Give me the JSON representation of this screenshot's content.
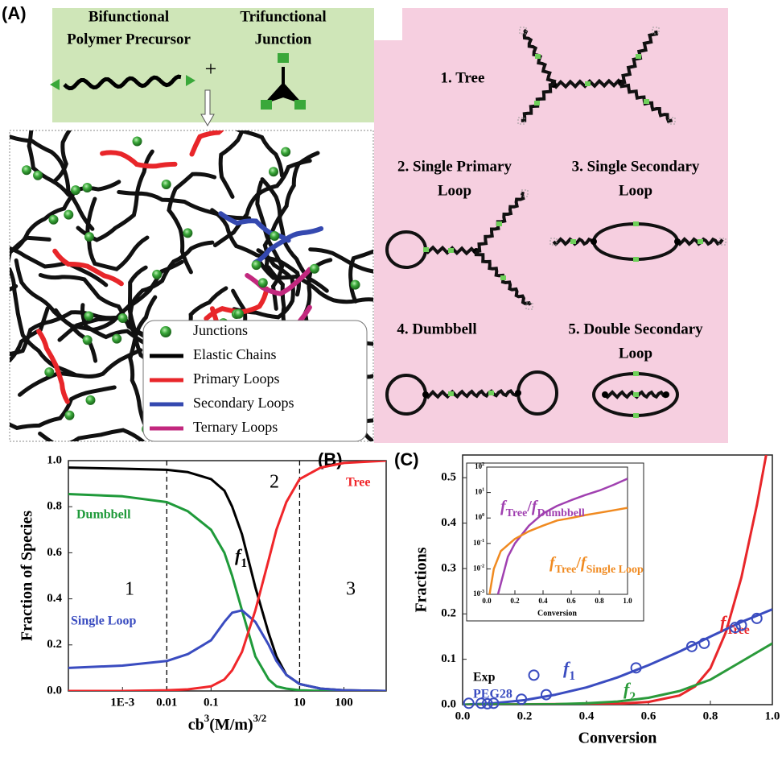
{
  "figure_a": {
    "panel_label": "(A)",
    "precursor_label": [
      "Bifunctional",
      "Polymer Precursor"
    ],
    "junction_label": [
      "Trifunctional",
      "Junction"
    ],
    "plus": "+",
    "structures": [
      {
        "label": [
          "1. Tree"
        ]
      },
      {
        "label": [
          "2. Single Primary",
          "Loop"
        ]
      },
      {
        "label": [
          "3. Single Secondary",
          "Loop"
        ]
      },
      {
        "label": [
          "4. Dumbbell"
        ]
      },
      {
        "label": [
          "5. Double Secondary",
          "Loop"
        ]
      }
    ],
    "legend": [
      {
        "name": "Junctions",
        "color": "#3aa83a",
        "kind": "dot"
      },
      {
        "name": "Elastic Chains",
        "color": "#000000",
        "kind": "line"
      },
      {
        "name": "Primary Loops",
        "color": "#e8262a",
        "kind": "line"
      },
      {
        "name": "Secondary Loops",
        "color": "#3549b0",
        "kind": "line"
      },
      {
        "name": "Ternary Loops",
        "color": "#c2287e",
        "kind": "line"
      }
    ]
  },
  "chart_data": [
    {
      "type": "line",
      "panel_label": "(B)",
      "y_label": "Fraction of Species",
      "x_label_parts": [
        "cb",
        "3",
        "(M/m)",
        "3/2"
      ],
      "xscale": "log",
      "xlim": [
        6e-05,
        900
      ],
      "ylim": [
        0,
        1
      ],
      "xticks": [
        {
          "value": 0.001,
          "label": "1E-3"
        },
        0.01,
        0.1,
        10,
        100
      ],
      "yticks": [
        {
          "value": 0,
          "label": "0.0"
        },
        0.2,
        0.4,
        0.6,
        0.8,
        {
          "value": 1,
          "label": "1.0"
        }
      ],
      "vlines": [
        0.01,
        10
      ],
      "regions": [
        "1",
        "2",
        "3"
      ],
      "x": [
        6e-05,
        0.001,
        0.01,
        0.03,
        0.1,
        0.2,
        0.3,
        0.5,
        1,
        2,
        3,
        5,
        10,
        30,
        100,
        900
      ],
      "series": [
        {
          "name_parts": [
            "f",
            "1"
          ],
          "color": "#000000",
          "values": [
            0.97,
            0.965,
            0.96,
            0.95,
            0.92,
            0.87,
            0.8,
            0.68,
            0.45,
            0.25,
            0.15,
            0.07,
            0.03,
            0.01,
            0.003,
            0
          ]
        },
        {
          "name": "Dumbbell",
          "color": "#1f9a3a",
          "values": [
            0.855,
            0.845,
            0.82,
            0.78,
            0.7,
            0.6,
            0.5,
            0.35,
            0.15,
            0.05,
            0.02,
            0.01,
            0.003,
            0,
            0,
            0
          ]
        },
        {
          "name": "Single Loop",
          "color": "#3a4cc0",
          "values": [
            0.1,
            0.11,
            0.13,
            0.16,
            0.22,
            0.3,
            0.34,
            0.35,
            0.3,
            0.2,
            0.13,
            0.07,
            0.03,
            0.01,
            0.003,
            0
          ]
        },
        {
          "name": "Tree",
          "color": "#f0262a",
          "values": [
            0,
            0,
            0.003,
            0.007,
            0.02,
            0.05,
            0.09,
            0.17,
            0.35,
            0.57,
            0.7,
            0.82,
            0.92,
            0.97,
            0.99,
            1
          ]
        }
      ]
    },
    {
      "type": "line",
      "panel_label": "(C)",
      "y_label": "Fractions",
      "x_label": "Conversion",
      "xlim": [
        0,
        1
      ],
      "ylim": [
        0,
        0.55
      ],
      "xticks": [
        {
          "value": 0,
          "label": "0.0"
        },
        0.2,
        0.4,
        0.6,
        0.8,
        {
          "value": 1,
          "label": "1.0"
        }
      ],
      "yticks": [
        {
          "value": 0,
          "label": "0.0"
        },
        0.1,
        0.2,
        0.3,
        0.4,
        0.5
      ],
      "series": [
        {
          "name_parts": [
            "f",
            "Tree"
          ],
          "color": "#e8262a",
          "x": [
            0,
            0.5,
            0.6,
            0.7,
            0.75,
            0.8,
            0.85,
            0.9,
            0.95,
            0.98
          ],
          "values": [
            0,
            0.002,
            0.006,
            0.02,
            0.04,
            0.08,
            0.16,
            0.28,
            0.44,
            0.55
          ]
        },
        {
          "name_parts": [
            "f",
            "1"
          ],
          "color": "#3a4cc0",
          "x": [
            0,
            0.1,
            0.2,
            0.3,
            0.4,
            0.5,
            0.6,
            0.7,
            0.8,
            0.9,
            1
          ],
          "values": [
            0,
            0.003,
            0.01,
            0.022,
            0.038,
            0.06,
            0.087,
            0.117,
            0.15,
            0.182,
            0.21
          ]
        },
        {
          "name_parts": [
            "f",
            "2"
          ],
          "color": "#2a9a3a",
          "x": [
            0,
            0.3,
            0.4,
            0.5,
            0.6,
            0.7,
            0.8,
            0.9,
            1
          ],
          "values": [
            0,
            0.001,
            0.003,
            0.007,
            0.015,
            0.03,
            0.055,
            0.095,
            0.135
          ]
        },
        {
          "name": "Exp",
          "sample": "PEG28",
          "kind": "scatter",
          "color": "#3a4cc0",
          "x": [
            0.02,
            0.06,
            0.08,
            0.1,
            0.19,
            0.23,
            0.27,
            0.56,
            0.74,
            0.78,
            0.88,
            0.9,
            0.95
          ],
          "values": [
            0.003,
            0.003,
            0.002,
            0.003,
            0.012,
            0.065,
            0.022,
            0.081,
            0.128,
            0.135,
            0.17,
            0.175,
            0.19
          ]
        }
      ]
    },
    {
      "type": "line",
      "x_label": "Conversion",
      "yscale": "log",
      "xlim": [
        0,
        1
      ],
      "ylim": [
        0.001,
        100
      ],
      "xticks": [
        {
          "value": 0,
          "label": "0.0"
        },
        0.2,
        0.4,
        0.6,
        0.8,
        {
          "value": 1,
          "label": "1.0"
        }
      ],
      "yticks": [
        {
          "value": 0.001,
          "label": "10",
          "exp": "-3"
        },
        {
          "value": 0.01,
          "label": "10",
          "exp": "-2"
        },
        {
          "value": 0.1,
          "label": "10",
          "exp": "-1"
        },
        {
          "value": 1,
          "label": "10",
          "exp": "0"
        },
        {
          "value": 10,
          "label": "10",
          "exp": "1"
        },
        {
          "value": 100,
          "label": "10",
          "exp": "2"
        }
      ],
      "series": [
        {
          "name_parts": [
            "f",
            "Tree",
            "/",
            "f",
            "Dumbbell"
          ],
          "color": "#a040b0",
          "x": [
            0.08,
            0.15,
            0.2,
            0.3,
            0.4,
            0.5,
            0.6,
            0.7,
            0.8,
            0.9,
            1
          ],
          "values": [
            0.001,
            0.03,
            0.1,
            0.5,
            1.5,
            3,
            5,
            8,
            12,
            20,
            35
          ]
        },
        {
          "name_parts": [
            "f",
            "Tree",
            "/",
            "f",
            "Single Loop"
          ],
          "color": "#f08a20",
          "x": [
            0.02,
            0.05,
            0.1,
            0.2,
            0.3,
            0.4,
            0.5,
            0.6,
            0.7,
            0.8,
            0.9,
            1
          ],
          "values": [
            0.001,
            0.01,
            0.05,
            0.15,
            0.3,
            0.5,
            0.8,
            1,
            1.3,
            1.6,
            2,
            2.5
          ]
        }
      ]
    }
  ]
}
